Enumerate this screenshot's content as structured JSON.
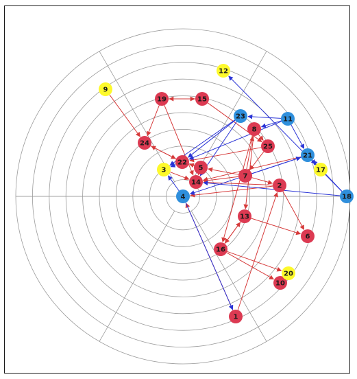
{
  "colors": {
    "red": "#dc3a52",
    "blue": "#2f8fdc",
    "yellow": "#fdf92c",
    "edge_red": "#d63a3a",
    "edge_blue": "#2a34d6",
    "grid": "#9b9b9b"
  },
  "nodes": [
    {
      "id": "1",
      "color": "red"
    },
    {
      "id": "2",
      "color": "red"
    },
    {
      "id": "3",
      "color": "yellow"
    },
    {
      "id": "4",
      "color": "blue"
    },
    {
      "id": "5",
      "color": "red"
    },
    {
      "id": "6",
      "color": "red"
    },
    {
      "id": "7",
      "color": "red"
    },
    {
      "id": "8",
      "color": "red"
    },
    {
      "id": "9",
      "color": "yellow"
    },
    {
      "id": "10",
      "color": "red"
    },
    {
      "id": "11",
      "color": "blue"
    },
    {
      "id": "12",
      "color": "yellow"
    },
    {
      "id": "13",
      "color": "red"
    },
    {
      "id": "14",
      "color": "red"
    },
    {
      "id": "15",
      "color": "red"
    },
    {
      "id": "16",
      "color": "red"
    },
    {
      "id": "17",
      "color": "yellow"
    },
    {
      "id": "18",
      "color": "blue"
    },
    {
      "id": "19",
      "color": "red"
    },
    {
      "id": "20",
      "color": "yellow"
    },
    {
      "id": "21",
      "color": "blue"
    },
    {
      "id": "22",
      "color": "red"
    },
    {
      "id": "23",
      "color": "blue"
    },
    {
      "id": "24",
      "color": "red"
    },
    {
      "id": "25",
      "color": "red"
    }
  ],
  "edges": [
    {
      "from": "15",
      "to": "19",
      "color": "red"
    },
    {
      "from": "19",
      "to": "15",
      "color": "red"
    },
    {
      "from": "19",
      "to": "24",
      "color": "red"
    },
    {
      "from": "9",
      "to": "24",
      "color": "red"
    },
    {
      "from": "15",
      "to": "25",
      "color": "red"
    },
    {
      "from": "24",
      "to": "22",
      "color": "red"
    },
    {
      "from": "22",
      "to": "24",
      "color": "red"
    },
    {
      "from": "19",
      "to": "14",
      "color": "red"
    },
    {
      "from": "7",
      "to": "5",
      "color": "red"
    },
    {
      "from": "5",
      "to": "22",
      "color": "red"
    },
    {
      "from": "7",
      "to": "14",
      "color": "red"
    },
    {
      "from": "2",
      "to": "14",
      "color": "red"
    },
    {
      "from": "7",
      "to": "2",
      "color": "red"
    },
    {
      "from": "2",
      "to": "4",
      "color": "red"
    },
    {
      "from": "25",
      "to": "7",
      "color": "red"
    },
    {
      "from": "25",
      "to": "22",
      "color": "red"
    },
    {
      "from": "8",
      "to": "25",
      "color": "red"
    },
    {
      "from": "8",
      "to": "13",
      "color": "red"
    },
    {
      "from": "8",
      "to": "16",
      "color": "red"
    },
    {
      "from": "13",
      "to": "16",
      "color": "red"
    },
    {
      "from": "16",
      "to": "13",
      "color": "red"
    },
    {
      "from": "13",
      "to": "6",
      "color": "red"
    },
    {
      "from": "16",
      "to": "10",
      "color": "red"
    },
    {
      "from": "16",
      "to": "20",
      "color": "red"
    },
    {
      "from": "1",
      "to": "4",
      "color": "red"
    },
    {
      "from": "1",
      "to": "2",
      "color": "red"
    },
    {
      "from": "2",
      "to": "6",
      "color": "red"
    },
    {
      "from": "7",
      "to": "8",
      "color": "red"
    },
    {
      "from": "5",
      "to": "14",
      "color": "red"
    },
    {
      "from": "21",
      "to": "14",
      "color": "red"
    },
    {
      "from": "3",
      "to": "14",
      "color": "red"
    },
    {
      "from": "11",
      "to": "23",
      "color": "blue"
    },
    {
      "from": "11",
      "to": "8",
      "color": "blue"
    },
    {
      "from": "23",
      "to": "22",
      "color": "blue"
    },
    {
      "from": "23",
      "to": "3",
      "color": "blue"
    },
    {
      "from": "11",
      "to": "22",
      "color": "blue"
    },
    {
      "from": "21",
      "to": "17",
      "color": "blue"
    },
    {
      "from": "18",
      "to": "12",
      "color": "blue"
    },
    {
      "from": "18",
      "to": "21",
      "color": "blue"
    },
    {
      "from": "18",
      "to": "14",
      "color": "blue"
    },
    {
      "from": "11",
      "to": "21",
      "color": "blue"
    },
    {
      "from": "21",
      "to": "4",
      "color": "blue"
    },
    {
      "from": "7",
      "to": "21",
      "color": "blue"
    },
    {
      "from": "4",
      "to": "3",
      "color": "blue"
    },
    {
      "from": "4",
      "to": "1",
      "color": "blue"
    },
    {
      "from": "22",
      "to": "3",
      "color": "blue"
    },
    {
      "from": "23",
      "to": "14",
      "color": "blue"
    }
  ]
}
